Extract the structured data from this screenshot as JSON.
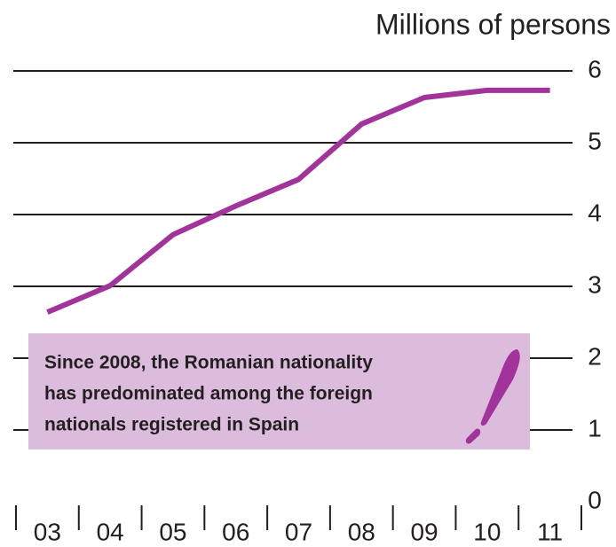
{
  "chart_data": {
    "type": "line",
    "title": "Millions of persons",
    "categories": [
      "03",
      "04",
      "05",
      "06",
      "07",
      "08",
      "09",
      "10",
      "11"
    ],
    "series": [
      {
        "name": "Foreign nationals registered",
        "color": "#a2339b",
        "values": [
          2.64,
          3.01,
          3.72,
          4.12,
          4.49,
          5.26,
          5.63,
          5.73,
          5.73
        ]
      }
    ],
    "ylim": [
      0,
      6
    ],
    "yticks": [
      0,
      1,
      2,
      3,
      4,
      5,
      6
    ],
    "grid": true,
    "annotation": [
      "Since 2008, the Romanian nationality",
      "has predominated among the foreign",
      "nationals registered in Spain"
    ],
    "annotation_color": "#dcbcdc"
  }
}
